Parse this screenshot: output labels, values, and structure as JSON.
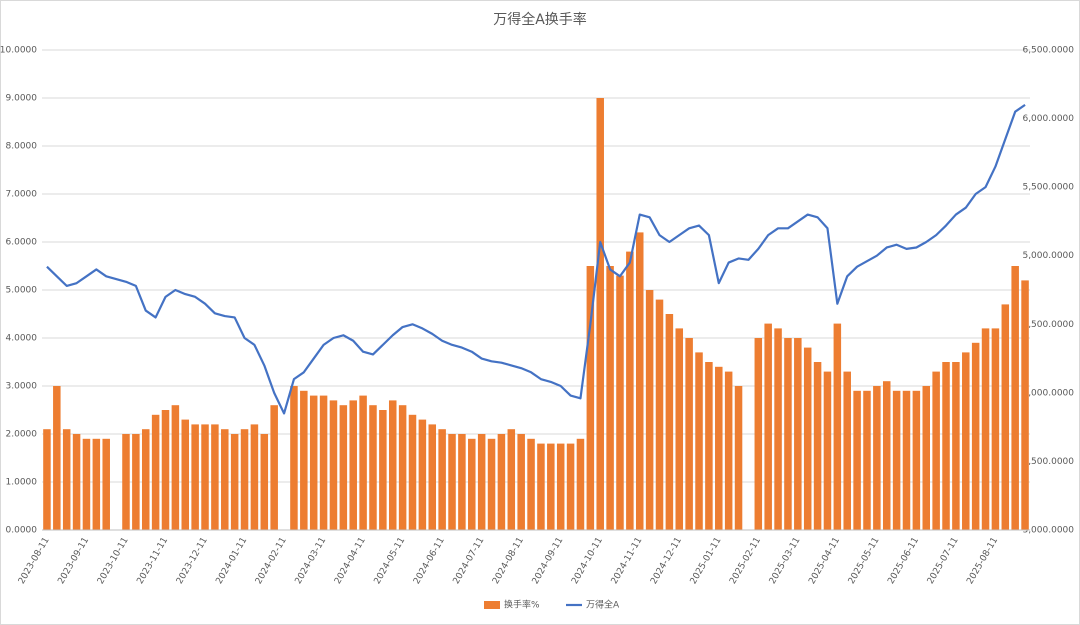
{
  "chart_data": {
    "type": "bar",
    "title": "万得全A换手率",
    "categories": [
      "2023-08-11",
      null,
      null,
      null,
      "2023-09-11",
      null,
      null,
      null,
      "2023-10-11",
      null,
      null,
      null,
      "2023-11-11",
      null,
      null,
      null,
      "2023-12-11",
      null,
      null,
      null,
      "2024-01-11",
      null,
      null,
      null,
      "2024-02-11",
      null,
      null,
      null,
      "2024-03-11",
      null,
      null,
      null,
      "2024-04-11",
      null,
      null,
      null,
      "2024-05-11",
      null,
      null,
      null,
      "2024-06-11",
      null,
      null,
      null,
      "2024-07-11",
      null,
      null,
      null,
      "2024-08-11",
      null,
      null,
      null,
      "2024-09-11",
      null,
      null,
      null,
      "2024-10-11",
      null,
      null,
      null,
      "2024-11-11",
      null,
      null,
      null,
      "2024-12-11",
      null,
      null,
      null,
      "2025-01-11",
      null,
      null,
      null,
      "2025-02-11",
      null,
      null,
      null,
      "2025-03-11",
      null,
      null,
      null,
      "2025-04-11",
      null,
      null,
      null,
      "2025-05-11",
      null,
      null,
      null,
      "2025-06-11",
      null,
      null,
      null,
      "2025-07-11",
      null,
      null,
      null,
      "2025-08-11",
      null,
      null,
      null
    ],
    "series": [
      {
        "name": "换手率%",
        "color": "#ed7d31",
        "type": "bar",
        "values": [
          2.1,
          3.0,
          2.1,
          2.0,
          1.9,
          1.9,
          1.9,
          null,
          2.0,
          2.0,
          2.1,
          2.4,
          2.5,
          2.6,
          2.3,
          2.2,
          2.2,
          2.2,
          2.1,
          2.0,
          2.1,
          2.2,
          2.0,
          2.6,
          null,
          3.0,
          2.9,
          2.8,
          2.8,
          2.7,
          2.6,
          2.7,
          2.8,
          2.6,
          2.5,
          2.7,
          2.6,
          2.4,
          2.3,
          2.2,
          2.1,
          2.0,
          2.0,
          1.9,
          2.0,
          1.9,
          2.0,
          2.1,
          2.0,
          1.9,
          1.8,
          1.8,
          1.8,
          1.8,
          1.9,
          5.5,
          9.0,
          5.5,
          5.3,
          5.8,
          6.2,
          5.0,
          4.8,
          4.5,
          4.2,
          4.0,
          3.7,
          3.5,
          3.4,
          3.3,
          3.0,
          null,
          4.0,
          4.3,
          4.2,
          4.0,
          4.0,
          3.8,
          3.5,
          3.3,
          4.3,
          3.3,
          2.9,
          2.9,
          3.0,
          3.1,
          2.9,
          2.9,
          2.9,
          3.0,
          3.3,
          3.5,
          3.5,
          3.7,
          3.9,
          4.2,
          4.2,
          4.7,
          5.5,
          5.2
        ]
      },
      {
        "name": "万得全A",
        "color": "#4472c4",
        "type": "line",
        "axis": "y2",
        "values": [
          4920,
          4850,
          4780,
          4800,
          4850,
          4900,
          4850,
          4830,
          4810,
          4780,
          4600,
          4550,
          4700,
          4750,
          4720,
          4700,
          4650,
          4580,
          4560,
          4550,
          4400,
          4350,
          4200,
          4000,
          3850,
          4100,
          4150,
          4250,
          4350,
          4400,
          4420,
          4380,
          4300,
          4280,
          4350,
          4420,
          4480,
          4500,
          4470,
          4430,
          4380,
          4350,
          4330,
          4300,
          4250,
          4230,
          4220,
          4200,
          4180,
          4150,
          4100,
          4080,
          4050,
          3980,
          3960,
          4500,
          5100,
          4900,
          4850,
          4950,
          5300,
          5280,
          5150,
          5100,
          5150,
          5200,
          5220,
          5150,
          4800,
          4950,
          4980,
          4970,
          5050,
          5150,
          5200,
          5200,
          5250,
          5300,
          5280,
          5200,
          4650,
          4850,
          4920,
          4960,
          5000,
          5060,
          5080,
          5050,
          5060,
          5100,
          5150,
          5220,
          5300,
          5350,
          5450,
          5500,
          5650,
          5850,
          6050,
          6100
        ]
      }
    ],
    "ylim": [
      0,
      10
    ],
    "yticks": [
      {
        "value": 0,
        "label": "0.0000"
      },
      {
        "value": 1,
        "label": "1.0000"
      },
      {
        "value": 2,
        "label": "2.0000"
      },
      {
        "value": 3,
        "label": "3.0000"
      },
      {
        "value": 4,
        "label": "4.0000"
      },
      {
        "value": 5,
        "label": "5.0000"
      },
      {
        "value": 6,
        "label": "6.0000"
      },
      {
        "value": 7,
        "label": "7.0000"
      },
      {
        "value": 8,
        "label": "8.0000"
      },
      {
        "value": 9,
        "label": "9.0000"
      },
      {
        "value": 10,
        "label": "10.0000"
      }
    ],
    "y2lim": [
      3000,
      6500
    ],
    "y2ticks": [
      {
        "value": 3000,
        "label": "3,000.0000"
      },
      {
        "value": 3500,
        "label": "3,500.0000"
      },
      {
        "value": 4000,
        "label": "4,000.0000"
      },
      {
        "value": 4500,
        "label": "4,500.0000"
      },
      {
        "value": 5000,
        "label": "5,000.0000"
      },
      {
        "value": 5500,
        "label": "5,500.0000"
      },
      {
        "value": 6000,
        "label": "6,000.0000"
      },
      {
        "value": 6500,
        "label": "6,500.0000"
      }
    ],
    "grid": true,
    "legend": "bottom"
  }
}
